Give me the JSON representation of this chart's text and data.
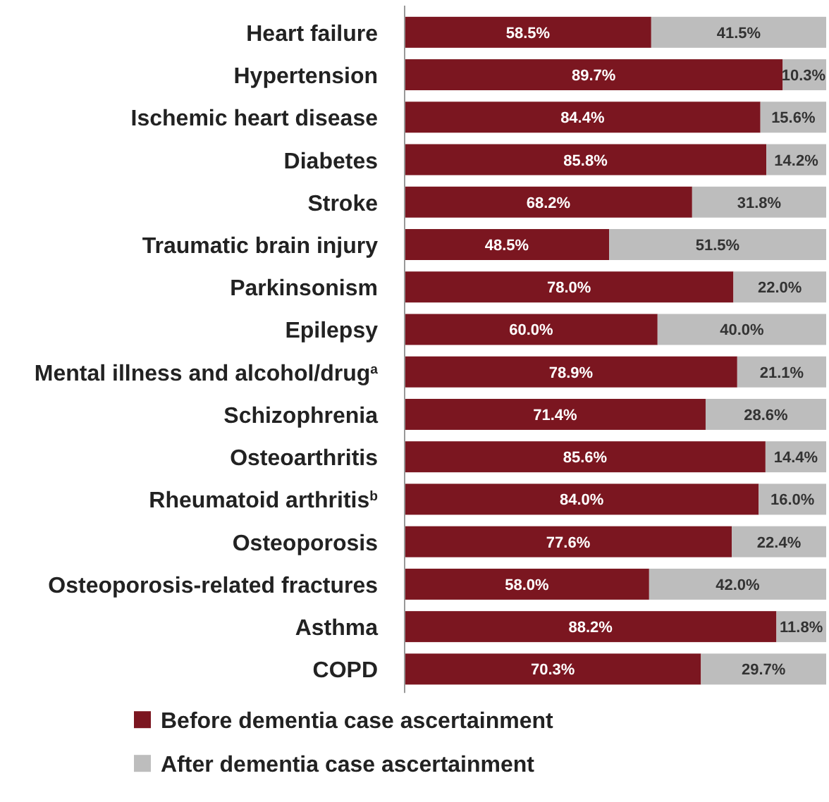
{
  "chart_data": {
    "type": "bar",
    "orientation": "horizontal",
    "stacked": true,
    "xlim": [
      0,
      100
    ],
    "tick_labels": "y",
    "legend": "bottom left",
    "categories": [
      "Heart failure",
      "Hypertension",
      "Ischemic heart disease",
      "Diabetes",
      "Stroke",
      "Traumatic brain injury",
      "Parkinsonism",
      "Epilepsy",
      "Mental illness and alcohol/drug$^{a}$",
      "Schizophrenia",
      "Osteoarthritis",
      "Rheumatoid arthritis$^{b}$",
      "Osteoporosis",
      "Osteoporosis-related fractures",
      "Asthma",
      "COPD"
    ],
    "series": [
      {
        "name": "Before dementia case ascertainment",
        "color": "#7b1620",
        "values": [
          58.5,
          89.7,
          84.4,
          85.8,
          68.2,
          48.5,
          78.0,
          60.0,
          78.9,
          71.4,
          85.6,
          84.0,
          77.6,
          58.0,
          88.2,
          70.3
        ],
        "value_labels": [
          "58.5%",
          "89.7%",
          "84.4%",
          "85.8%",
          "68.2%",
          "48.5%",
          "78.0%",
          "60.0%",
          "78.9%",
          "71.4%",
          "85.6%",
          "84.0%",
          "77.6%",
          "58.0%",
          "88.2%",
          "70.3%"
        ]
      },
      {
        "name": "After dementia case ascertainment",
        "color": "#bdbdbd",
        "values": [
          41.5,
          10.3,
          15.6,
          14.2,
          31.8,
          51.5,
          22.0,
          40.0,
          21.1,
          28.6,
          14.4,
          16.0,
          22.4,
          42.0,
          11.8,
          29.7
        ],
        "value_labels": [
          "41.5%",
          "10.3%",
          "15.6%",
          "14.2%",
          "31.8%",
          "51.5%",
          "22.0%",
          "40.0%",
          "21.1%",
          "28.6%",
          "14.4%",
          "16.0%",
          "22.4%",
          "42.0%",
          "11.8%",
          "29.7%"
        ]
      }
    ]
  }
}
